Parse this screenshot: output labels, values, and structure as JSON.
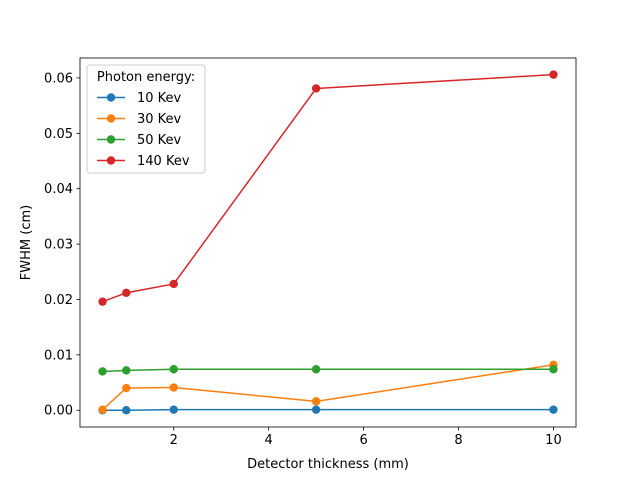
{
  "chart_data": {
    "type": "line",
    "xlabel": "Detector thickness (mm)",
    "ylabel": "FWHM (cm)",
    "xlim": [
      0.025,
      10.475
    ],
    "ylim": [
      -0.00303,
      0.0636
    ],
    "x_ticks": [
      2,
      4,
      6,
      8,
      10
    ],
    "y_ticks": [
      0.0,
      0.01,
      0.02,
      0.03,
      0.04,
      0.05,
      0.06
    ],
    "y_tick_labels": [
      "0.00",
      "0.01",
      "0.02",
      "0.03",
      "0.04",
      "0.05",
      "0.06"
    ],
    "grid": false,
    "legend": {
      "title": "Photon energy:",
      "position": "top-left"
    },
    "x": [
      0.5,
      1,
      2,
      5,
      10
    ],
    "series": [
      {
        "name": "10 Kev",
        "color": "#1f77b4",
        "values": [
          0.0,
          0.0,
          0.0001,
          0.0001,
          0.0001
        ]
      },
      {
        "name": "30 Kev",
        "color": "#ff7f0e",
        "values": [
          0.0001,
          0.004,
          0.0041,
          0.0016,
          0.0082
        ]
      },
      {
        "name": "50 Kev",
        "color": "#2ca02c",
        "values": [
          0.007,
          0.0072,
          0.0074,
          0.0074,
          0.0074
        ]
      },
      {
        "name": "140 Kev",
        "color": "#d62728",
        "values": [
          0.0196,
          0.0212,
          0.0228,
          0.0581,
          0.0606
        ]
      }
    ]
  }
}
